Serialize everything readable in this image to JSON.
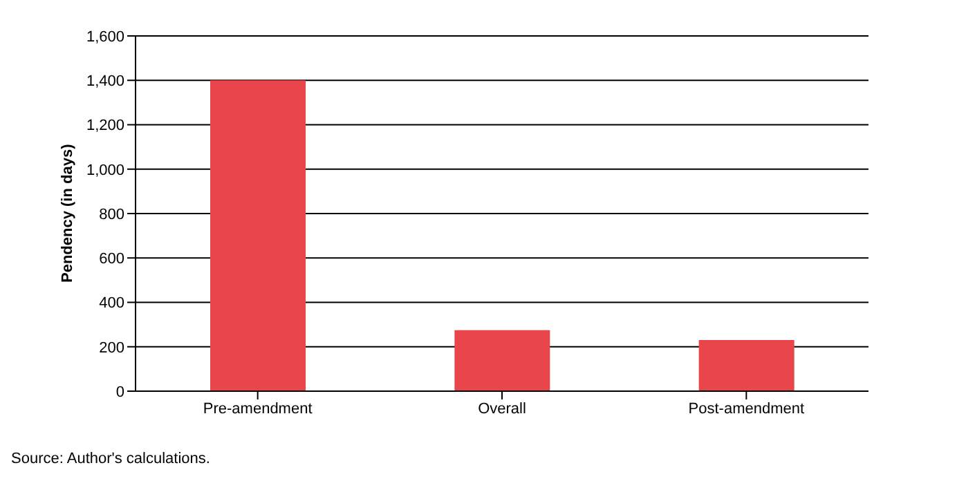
{
  "chart_data": {
    "type": "bar",
    "ylabel": "Pendency (in days)",
    "categories": [
      "Pre-amendment",
      "Overall",
      "Post-amendment"
    ],
    "values": [
      1400,
      275,
      230
    ],
    "color": "#e8464a",
    "ylim": [
      0,
      1600
    ],
    "yticks": [
      {
        "value": 0,
        "label": "0"
      },
      {
        "value": 200,
        "label": "200"
      },
      {
        "value": 400,
        "label": "400"
      },
      {
        "value": 600,
        "label": "600"
      },
      {
        "value": 800,
        "label": "800"
      },
      {
        "value": 1000,
        "label": "1,000"
      },
      {
        "value": 1200,
        "label": "1,200"
      },
      {
        "value": 1400,
        "label": "1,400"
      },
      {
        "value": 1600,
        "label": "1,600"
      }
    ],
    "grid": "y",
    "annotations": [
      "Source: Author's calculations."
    ]
  }
}
